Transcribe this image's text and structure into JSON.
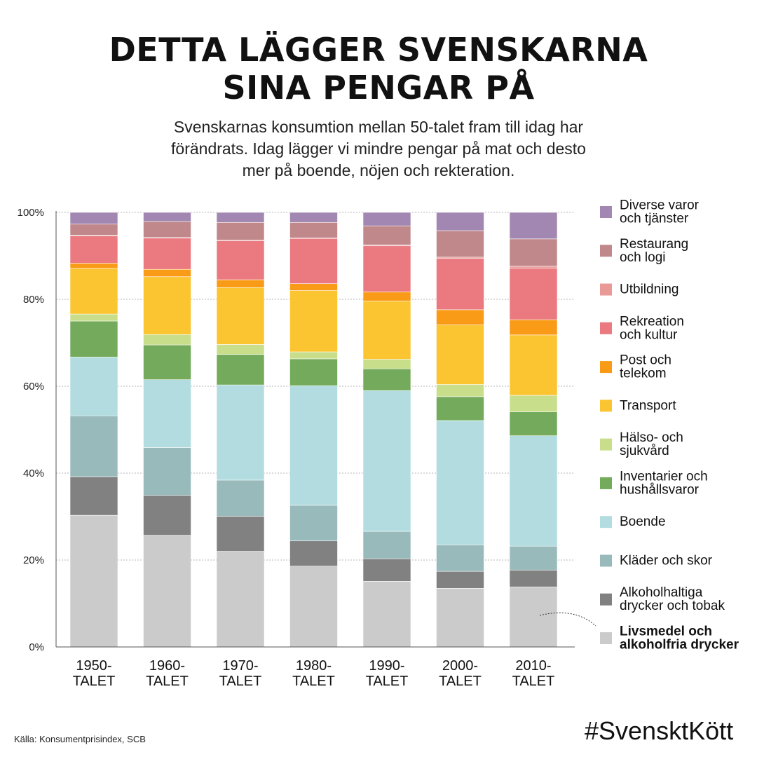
{
  "title": {
    "line1": "DETTA LÄGGER SVENSKARNA",
    "line2": "SINA PENGAR PÅ"
  },
  "subtitle": {
    "line1": "Svenskarnas konsumtion mellan 50-talet fram till idag har",
    "line2": "förändrats. Idag lägger vi mindre pengar på mat och desto",
    "line3": "mer på boende, nöjen och rekteration."
  },
  "source": "Källa: Konsumentprisindex, SCB",
  "hashtag": "#SvensktKött",
  "chart_data": {
    "type": "bar",
    "stacked": true,
    "ylim": [
      0,
      100
    ],
    "yticks": [
      "0%",
      "20%",
      "40%",
      "60%",
      "80%",
      "100%"
    ],
    "grid": true,
    "legend_position": "right",
    "categories": [
      [
        "1950-",
        "TALET"
      ],
      [
        "1960-",
        "TALET"
      ],
      [
        "1970-",
        "TALET"
      ],
      [
        "1980-",
        "TALET"
      ],
      [
        "1990-",
        "TALET"
      ],
      [
        "2000-",
        "TALET"
      ],
      [
        "2010-",
        "TALET"
      ]
    ],
    "series": [
      {
        "name": [
          "Livsmedel och",
          "alkoholfria drycker"
        ],
        "color": "#cbcbcb",
        "bold": true,
        "values": [
          30.3,
          25.7,
          22,
          18.6,
          15.1,
          13.5,
          13.8
        ]
      },
      {
        "name": [
          "Alkoholhaltiga",
          "drycker och tobak"
        ],
        "color": "#818181",
        "values": [
          8.9,
          9.2,
          8.1,
          5.8,
          5.2,
          3.9,
          3.9
        ]
      },
      {
        "name": [
          "Kläder och skor"
        ],
        "color": "#98babb",
        "values": [
          14,
          11,
          8.3,
          8.2,
          6.3,
          6.1,
          5.5
        ]
      },
      {
        "name": [
          "Boende"
        ],
        "color": "#b2dce0",
        "values": [
          13.5,
          15.6,
          21.9,
          27.5,
          32.4,
          28.6,
          25.4
        ]
      },
      {
        "name": [
          "Inventarier och",
          "hushållsvaror"
        ],
        "color": "#74aa5b",
        "values": [
          8.3,
          8,
          7,
          6.2,
          5,
          5.5,
          5.5
        ]
      },
      {
        "name": [
          "Hälso- och",
          "sjukvård"
        ],
        "color": "#c8de8a",
        "values": [
          1.6,
          2.4,
          2.3,
          1.6,
          2.2,
          2.8,
          3.8
        ]
      },
      {
        "name": [
          "Transport"
        ],
        "color": "#fbc431",
        "values": [
          10.5,
          13.3,
          13.1,
          14.1,
          13.4,
          13.7,
          13.9
        ]
      },
      {
        "name": [
          "Post och",
          "telekom"
        ],
        "color": "#f99b16",
        "values": [
          1.2,
          1.7,
          1.8,
          1.6,
          2.1,
          3.5,
          3.5
        ]
      },
      {
        "name": [
          "Rekreation",
          "och kultur"
        ],
        "color": "#ea7980",
        "values": [
          6.3,
          7.2,
          9,
          10.4,
          10.6,
          11.8,
          11.9
        ]
      },
      {
        "name": [
          "Utbildning"
        ],
        "color": "#e99a97",
        "values": [
          0.1,
          0.1,
          0.1,
          0.1,
          0.2,
          0.3,
          0.4
        ]
      },
      {
        "name": [
          "Restaurang",
          "och logi"
        ],
        "color": "#c0888a",
        "values": [
          2.6,
          3.7,
          4.1,
          3.6,
          4.4,
          6.1,
          6.3
        ]
      },
      {
        "name": [
          "Diverse varor",
          "och tjänster"
        ],
        "color": "#a187b1",
        "values": [
          2.7,
          2.1,
          2.3,
          2.3,
          3.1,
          4.2,
          6.1
        ]
      }
    ]
  }
}
